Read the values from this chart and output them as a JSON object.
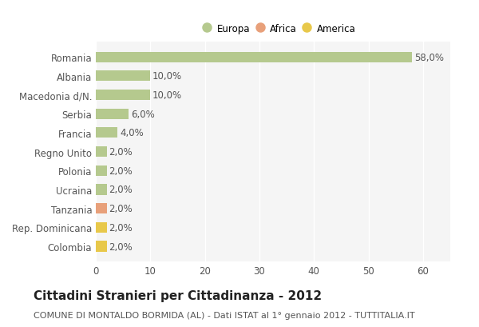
{
  "categories": [
    "Romania",
    "Albania",
    "Macedonia d/N.",
    "Serbia",
    "Francia",
    "Regno Unito",
    "Polonia",
    "Ucraina",
    "Tanzania",
    "Rep. Dominicana",
    "Colombia"
  ],
  "values": [
    58.0,
    10.0,
    10.0,
    6.0,
    4.0,
    2.0,
    2.0,
    2.0,
    2.0,
    2.0,
    2.0
  ],
  "colors": [
    "#b5c98e",
    "#b5c98e",
    "#b5c98e",
    "#b5c98e",
    "#b5c98e",
    "#b5c98e",
    "#b5c98e",
    "#b5c98e",
    "#e8a07a",
    "#e8c84a",
    "#e8c84a"
  ],
  "continent": [
    "Europa",
    "Europa",
    "Europa",
    "Europa",
    "Europa",
    "Europa",
    "Europa",
    "Europa",
    "Africa",
    "America",
    "America"
  ],
  "legend_labels": [
    "Europa",
    "Africa",
    "America"
  ],
  "legend_colors": [
    "#b5c98e",
    "#e8a07a",
    "#e8c84a"
  ],
  "title": "Cittadini Stranieri per Cittadinanza - 2012",
  "subtitle": "COMUNE DI MONTALDO BORMIDA (AL) - Dati ISTAT al 1° gennaio 2012 - TUTTITALIA.IT",
  "xlim": [
    0,
    65
  ],
  "xticks": [
    0,
    10,
    20,
    30,
    40,
    50,
    60
  ],
  "bg_color": "#ffffff",
  "plot_bg_color": "#f5f5f5",
  "grid_color": "#ffffff",
  "bar_height": 0.55,
  "title_fontsize": 11,
  "subtitle_fontsize": 8,
  "label_fontsize": 8.5,
  "tick_fontsize": 8.5
}
